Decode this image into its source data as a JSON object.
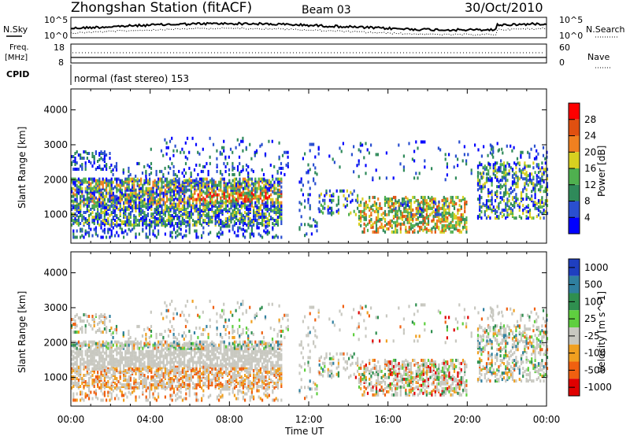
{
  "header": {
    "station": "Zhongshan Station (fitACF)",
    "beam": "Beam 03",
    "date": "30/Oct/2010"
  },
  "noise_panel": {
    "left_label": "N.Sky",
    "right_label": "N.Search",
    "left_ticks": [
      "10^5",
      "10^0"
    ],
    "right_ticks": [
      "10^5",
      "10^0"
    ]
  },
  "freq_panel": {
    "left_label_line1": "Freq.",
    "left_label_line2": "[MHz]",
    "right_label": "Nave",
    "left_ticks": [
      "18",
      "8"
    ],
    "right_ticks": [
      "60",
      "0"
    ]
  },
  "cpid": {
    "label": "CPID",
    "text": "normal (fast stereo) 153"
  },
  "axes": {
    "ylabel": "Slant Range [km]",
    "xlabel": "Time UT",
    "y_ticks": [
      "1000",
      "2000",
      "3000",
      "4000"
    ],
    "x_ticks": [
      "00:00",
      "04:00",
      "08:00",
      "12:00",
      "16:00",
      "20:00",
      "00:00"
    ]
  },
  "power_scale": {
    "label": "Power [dB]",
    "ticks": [
      "4",
      "8",
      "12",
      "16",
      "20",
      "24",
      "28"
    ],
    "colors": [
      "#0000ff",
      "#2a4fd0",
      "#2f8a5a",
      "#4fb04f",
      "#d8d020",
      "#f08020",
      "#e05010",
      "#ff0000"
    ]
  },
  "velocity_scale": {
    "label": "Velocity [m s^-1]",
    "ticks": [
      "1000",
      "500",
      "100",
      "25",
      "-25",
      "-100",
      "-500",
      "-1000"
    ],
    "colors": [
      "#1f3fbf",
      "#2f7f9f",
      "#2f8f4f",
      "#5fcf3f",
      "#c8c8c0",
      "#f0a020",
      "#f06010",
      "#e00000"
    ]
  },
  "chart_data": [
    {
      "type": "heatmap",
      "title": "",
      "xlabel": "Time UT",
      "ylabel": "Slant Range [km]",
      "xlim": [
        "00:00",
        "00:00"
      ],
      "ylim": [
        180,
        4600
      ],
      "colorbar_label": "Power [dB]",
      "colorbar_ticks": [
        4,
        8,
        12,
        16,
        20,
        24,
        28
      ]
    },
    {
      "type": "heatmap",
      "title": "",
      "xlabel": "Time UT",
      "ylabel": "Slant Range [km]",
      "xlim": [
        "00:00",
        "00:00"
      ],
      "ylim": [
        180,
        4600
      ],
      "colorbar_label": "Velocity [m s^-1]",
      "colorbar_ticks": [
        1000,
        500,
        100,
        25,
        -25,
        -100,
        -500,
        -1000
      ]
    }
  ]
}
